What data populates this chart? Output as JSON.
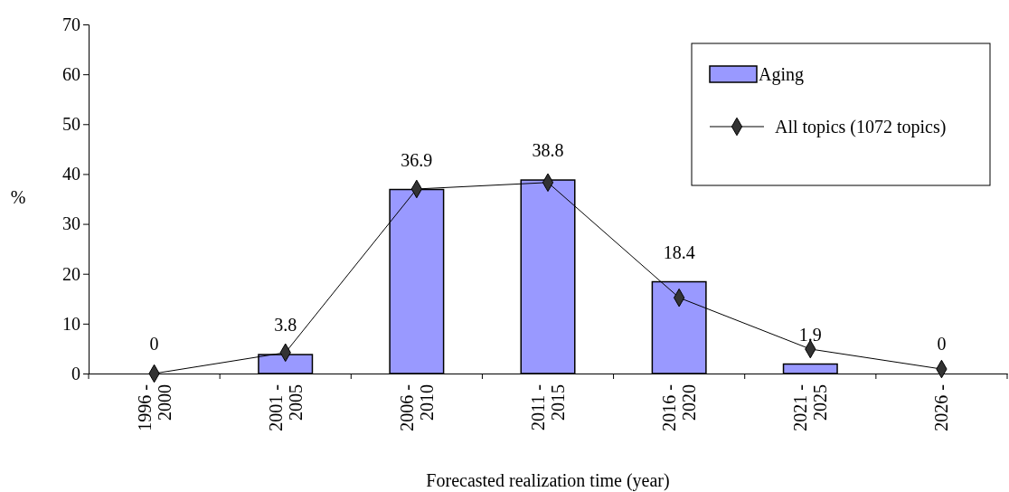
{
  "chart_data": {
    "type": "bar",
    "xlabel": "Forecasted realization time (year)",
    "ylabel": "%",
    "categories": [
      "1996 - 2000",
      "2001 - 2005",
      "2006 - 2010",
      "2011 - 2015",
      "2016 - 2020",
      "2021 - 2025",
      "2026 -"
    ],
    "ylim": [
      0,
      70
    ],
    "yticks": [
      0,
      10,
      20,
      30,
      40,
      50,
      60,
      70
    ],
    "grid": false,
    "legend": "top right",
    "series": [
      {
        "name": "Aging",
        "color": "#9999ff",
        "values": [
          0,
          3.8,
          36.9,
          38.8,
          18.4,
          1.9,
          0
        ],
        "value_labels": [
          "0",
          "3.8",
          "36.9",
          "38.8",
          "18.4",
          "1.9",
          "0"
        ]
      },
      {
        "name": "All topics (1072 topics)",
        "type": "line",
        "color": "#333333",
        "marker": "diamond",
        "values": [
          0,
          4.2,
          37.0,
          38.3,
          15.2,
          4.9,
          0.9
        ]
      }
    ]
  }
}
